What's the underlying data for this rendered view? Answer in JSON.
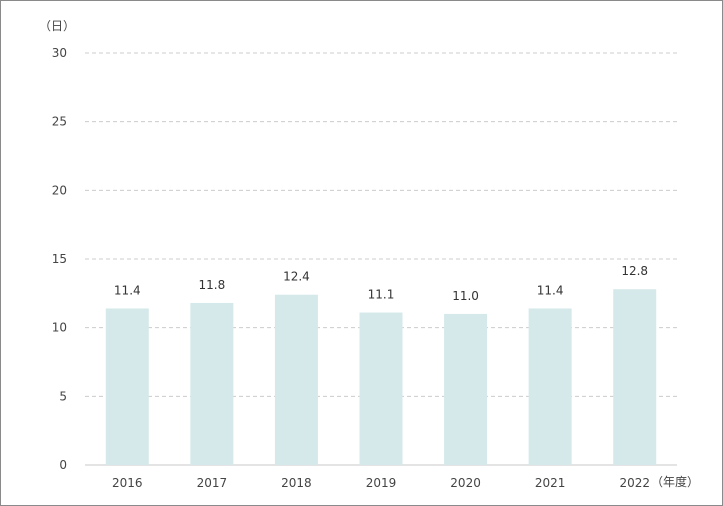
{
  "chart_data": {
    "type": "bar",
    "categories": [
      "2016",
      "2017",
      "2018",
      "2019",
      "2020",
      "2021",
      "2022"
    ],
    "values": [
      11.4,
      11.8,
      12.4,
      11.1,
      11.0,
      11.4,
      12.8
    ],
    "value_labels": [
      "11.4",
      "11.8",
      "12.4",
      "11.1",
      "11.0",
      "11.4",
      "12.8"
    ],
    "y_ticks": [
      "0",
      "5",
      "10",
      "15",
      "20",
      "25",
      "30"
    ],
    "ylim": [
      0,
      30
    ],
    "y_unit": "（日）",
    "x_unit": "（年度）",
    "grid": true,
    "bar_color": "#d6e9ea",
    "grid_color": "#cccccc"
  }
}
